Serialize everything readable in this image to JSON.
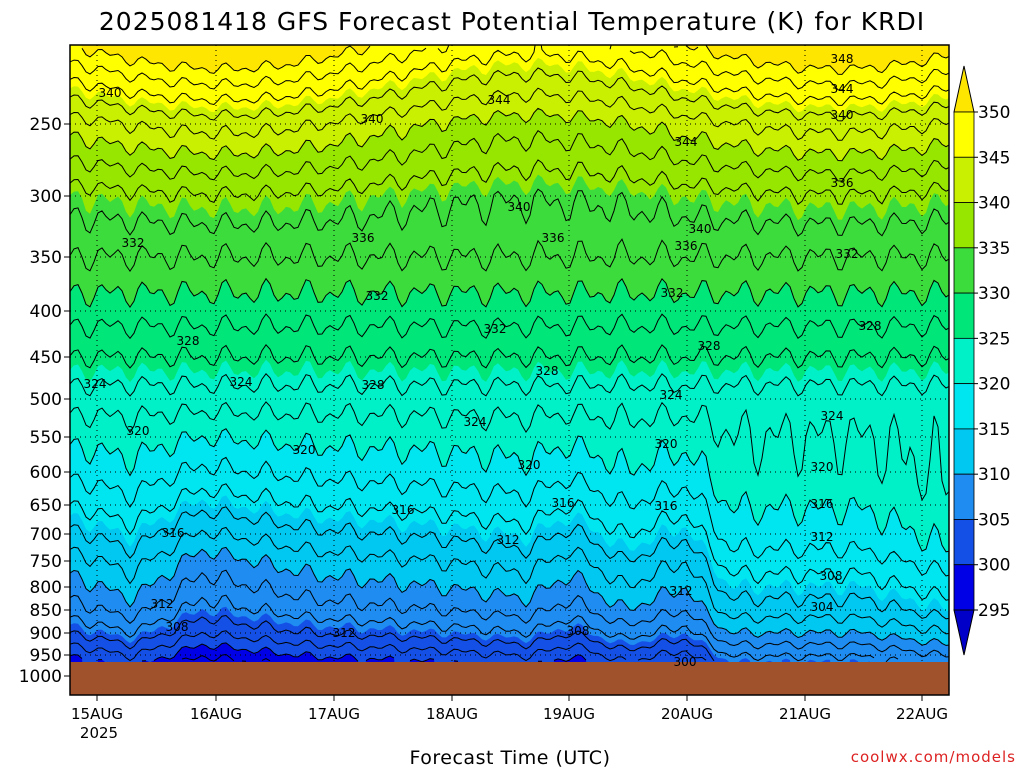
{
  "title": "2025081418 GFS Forecast Potential Temperature (K) for KRDI",
  "xlabel": "Forecast Time (UTC)",
  "credit": "coolwx.com/models",
  "x_ticks": [
    "15AUG",
    "16AUG",
    "17AUG",
    "18AUG",
    "19AUG",
    "20AUG",
    "21AUG",
    "22AUG"
  ],
  "x_year": "2025",
  "y_ticks": [
    "250",
    "300",
    "350",
    "400",
    "450",
    "500",
    "550",
    "600",
    "650",
    "700",
    "750",
    "800",
    "850",
    "900",
    "950",
    "1000"
  ],
  "colorbar": {
    "labels": [
      "350",
      "345",
      "340",
      "335",
      "330",
      "325",
      "320",
      "315",
      "310",
      "305",
      "300",
      "295"
    ],
    "colors": [
      "#ffe600",
      "#ffff00",
      "#c8f000",
      "#96e600",
      "#3cdc3c",
      "#00e678",
      "#00f0c8",
      "#00e6f0",
      "#00c8f0",
      "#1e8cf0",
      "#1450e6",
      "#0000e6",
      "#0000c8"
    ]
  },
  "surface_color": "#a0522d",
  "chart_data": {
    "type": "heatmap",
    "title": "2025081418 GFS Forecast Potential Temperature (K) for KRDI",
    "xlabel": "Forecast Time (UTC)",
    "ylabel": "",
    "x_categories": [
      "15AUG",
      "16AUG",
      "17AUG",
      "18AUG",
      "19AUG",
      "20AUG",
      "21AUG",
      "22AUG"
    ],
    "y_levels_hPa": [
      250,
      300,
      350,
      400,
      450,
      500,
      550,
      600,
      650,
      700,
      750,
      800,
      850,
      900,
      950,
      1000
    ],
    "y_scale": "log-pressure (inverted)",
    "contour_interval": 2,
    "color_interval": 5,
    "color_range": [
      295,
      350
    ],
    "contour_labels": [
      "340",
      "344",
      "348",
      "336",
      "332",
      "328",
      "324",
      "320",
      "316",
      "312",
      "308",
      "304",
      "300"
    ],
    "grid": true
  }
}
